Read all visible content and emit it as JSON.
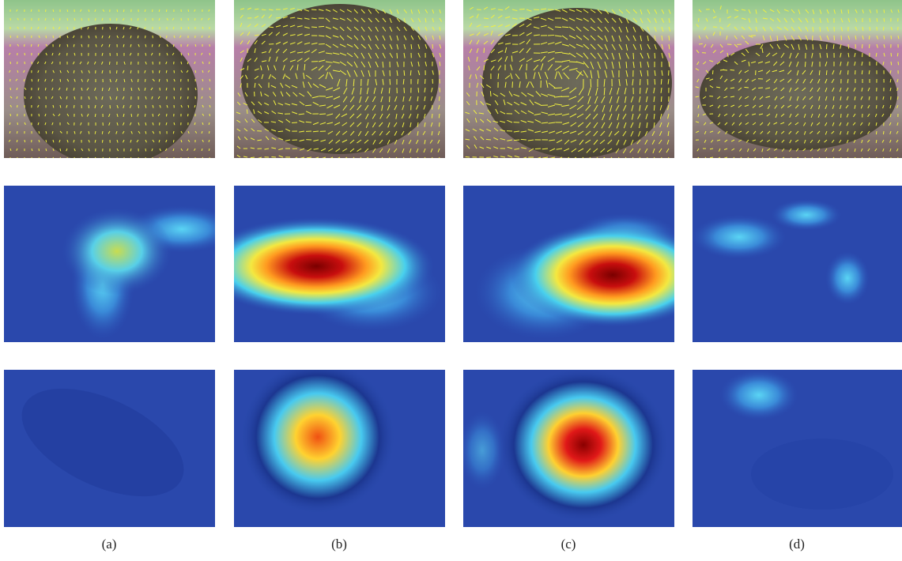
{
  "figure": {
    "panel_labels": [
      "(a)",
      "(b)",
      "(c)",
      "(d)"
    ]
  }
}
